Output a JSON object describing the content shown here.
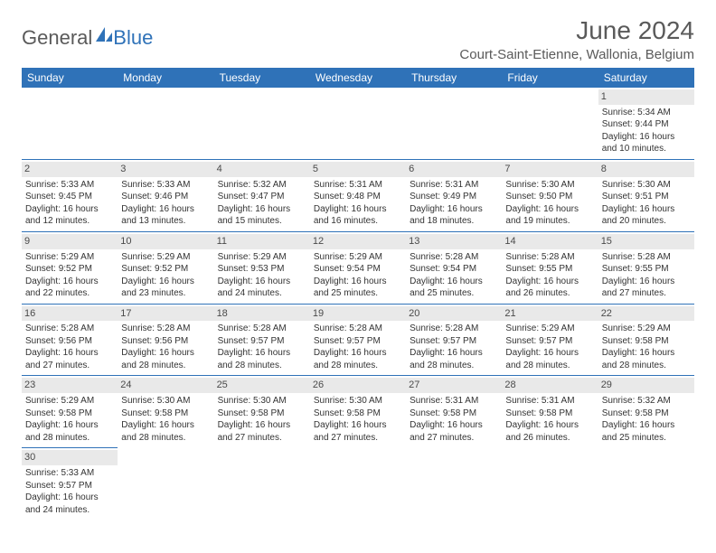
{
  "brand": {
    "part1": "General",
    "part2": "Blue",
    "sail_color": "#2f72b8"
  },
  "title": "June 2024",
  "location": "Court-Saint-Etienne, Wallonia, Belgium",
  "colors": {
    "header_bg": "#2f72b8",
    "header_fg": "#ffffff",
    "daybar": "#e9e9e9"
  },
  "day_headers": [
    "Sunday",
    "Monday",
    "Tuesday",
    "Wednesday",
    "Thursday",
    "Friday",
    "Saturday"
  ],
  "weeks": [
    [
      {
        "n": "",
        "sr": "",
        "ss": "",
        "dl": ""
      },
      {
        "n": "",
        "sr": "",
        "ss": "",
        "dl": ""
      },
      {
        "n": "",
        "sr": "",
        "ss": "",
        "dl": ""
      },
      {
        "n": "",
        "sr": "",
        "ss": "",
        "dl": ""
      },
      {
        "n": "",
        "sr": "",
        "ss": "",
        "dl": ""
      },
      {
        "n": "",
        "sr": "",
        "ss": "",
        "dl": ""
      },
      {
        "n": "1",
        "sr": "Sunrise: 5:34 AM",
        "ss": "Sunset: 9:44 PM",
        "dl": "Daylight: 16 hours and 10 minutes."
      }
    ],
    [
      {
        "n": "2",
        "sr": "Sunrise: 5:33 AM",
        "ss": "Sunset: 9:45 PM",
        "dl": "Daylight: 16 hours and 12 minutes."
      },
      {
        "n": "3",
        "sr": "Sunrise: 5:33 AM",
        "ss": "Sunset: 9:46 PM",
        "dl": "Daylight: 16 hours and 13 minutes."
      },
      {
        "n": "4",
        "sr": "Sunrise: 5:32 AM",
        "ss": "Sunset: 9:47 PM",
        "dl": "Daylight: 16 hours and 15 minutes."
      },
      {
        "n": "5",
        "sr": "Sunrise: 5:31 AM",
        "ss": "Sunset: 9:48 PM",
        "dl": "Daylight: 16 hours and 16 minutes."
      },
      {
        "n": "6",
        "sr": "Sunrise: 5:31 AM",
        "ss": "Sunset: 9:49 PM",
        "dl": "Daylight: 16 hours and 18 minutes."
      },
      {
        "n": "7",
        "sr": "Sunrise: 5:30 AM",
        "ss": "Sunset: 9:50 PM",
        "dl": "Daylight: 16 hours and 19 minutes."
      },
      {
        "n": "8",
        "sr": "Sunrise: 5:30 AM",
        "ss": "Sunset: 9:51 PM",
        "dl": "Daylight: 16 hours and 20 minutes."
      }
    ],
    [
      {
        "n": "9",
        "sr": "Sunrise: 5:29 AM",
        "ss": "Sunset: 9:52 PM",
        "dl": "Daylight: 16 hours and 22 minutes."
      },
      {
        "n": "10",
        "sr": "Sunrise: 5:29 AM",
        "ss": "Sunset: 9:52 PM",
        "dl": "Daylight: 16 hours and 23 minutes."
      },
      {
        "n": "11",
        "sr": "Sunrise: 5:29 AM",
        "ss": "Sunset: 9:53 PM",
        "dl": "Daylight: 16 hours and 24 minutes."
      },
      {
        "n": "12",
        "sr": "Sunrise: 5:29 AM",
        "ss": "Sunset: 9:54 PM",
        "dl": "Daylight: 16 hours and 25 minutes."
      },
      {
        "n": "13",
        "sr": "Sunrise: 5:28 AM",
        "ss": "Sunset: 9:54 PM",
        "dl": "Daylight: 16 hours and 25 minutes."
      },
      {
        "n": "14",
        "sr": "Sunrise: 5:28 AM",
        "ss": "Sunset: 9:55 PM",
        "dl": "Daylight: 16 hours and 26 minutes."
      },
      {
        "n": "15",
        "sr": "Sunrise: 5:28 AM",
        "ss": "Sunset: 9:55 PM",
        "dl": "Daylight: 16 hours and 27 minutes."
      }
    ],
    [
      {
        "n": "16",
        "sr": "Sunrise: 5:28 AM",
        "ss": "Sunset: 9:56 PM",
        "dl": "Daylight: 16 hours and 27 minutes."
      },
      {
        "n": "17",
        "sr": "Sunrise: 5:28 AM",
        "ss": "Sunset: 9:56 PM",
        "dl": "Daylight: 16 hours and 28 minutes."
      },
      {
        "n": "18",
        "sr": "Sunrise: 5:28 AM",
        "ss": "Sunset: 9:57 PM",
        "dl": "Daylight: 16 hours and 28 minutes."
      },
      {
        "n": "19",
        "sr": "Sunrise: 5:28 AM",
        "ss": "Sunset: 9:57 PM",
        "dl": "Daylight: 16 hours and 28 minutes."
      },
      {
        "n": "20",
        "sr": "Sunrise: 5:28 AM",
        "ss": "Sunset: 9:57 PM",
        "dl": "Daylight: 16 hours and 28 minutes."
      },
      {
        "n": "21",
        "sr": "Sunrise: 5:29 AM",
        "ss": "Sunset: 9:57 PM",
        "dl": "Daylight: 16 hours and 28 minutes."
      },
      {
        "n": "22",
        "sr": "Sunrise: 5:29 AM",
        "ss": "Sunset: 9:58 PM",
        "dl": "Daylight: 16 hours and 28 minutes."
      }
    ],
    [
      {
        "n": "23",
        "sr": "Sunrise: 5:29 AM",
        "ss": "Sunset: 9:58 PM",
        "dl": "Daylight: 16 hours and 28 minutes."
      },
      {
        "n": "24",
        "sr": "Sunrise: 5:30 AM",
        "ss": "Sunset: 9:58 PM",
        "dl": "Daylight: 16 hours and 28 minutes."
      },
      {
        "n": "25",
        "sr": "Sunrise: 5:30 AM",
        "ss": "Sunset: 9:58 PM",
        "dl": "Daylight: 16 hours and 27 minutes."
      },
      {
        "n": "26",
        "sr": "Sunrise: 5:30 AM",
        "ss": "Sunset: 9:58 PM",
        "dl": "Daylight: 16 hours and 27 minutes."
      },
      {
        "n": "27",
        "sr": "Sunrise: 5:31 AM",
        "ss": "Sunset: 9:58 PM",
        "dl": "Daylight: 16 hours and 27 minutes."
      },
      {
        "n": "28",
        "sr": "Sunrise: 5:31 AM",
        "ss": "Sunset: 9:58 PM",
        "dl": "Daylight: 16 hours and 26 minutes."
      },
      {
        "n": "29",
        "sr": "Sunrise: 5:32 AM",
        "ss": "Sunset: 9:58 PM",
        "dl": "Daylight: 16 hours and 25 minutes."
      }
    ],
    [
      {
        "n": "30",
        "sr": "Sunrise: 5:33 AM",
        "ss": "Sunset: 9:57 PM",
        "dl": "Daylight: 16 hours and 24 minutes."
      },
      {
        "n": "",
        "sr": "",
        "ss": "",
        "dl": ""
      },
      {
        "n": "",
        "sr": "",
        "ss": "",
        "dl": ""
      },
      {
        "n": "",
        "sr": "",
        "ss": "",
        "dl": ""
      },
      {
        "n": "",
        "sr": "",
        "ss": "",
        "dl": ""
      },
      {
        "n": "",
        "sr": "",
        "ss": "",
        "dl": ""
      },
      {
        "n": "",
        "sr": "",
        "ss": "",
        "dl": ""
      }
    ]
  ]
}
